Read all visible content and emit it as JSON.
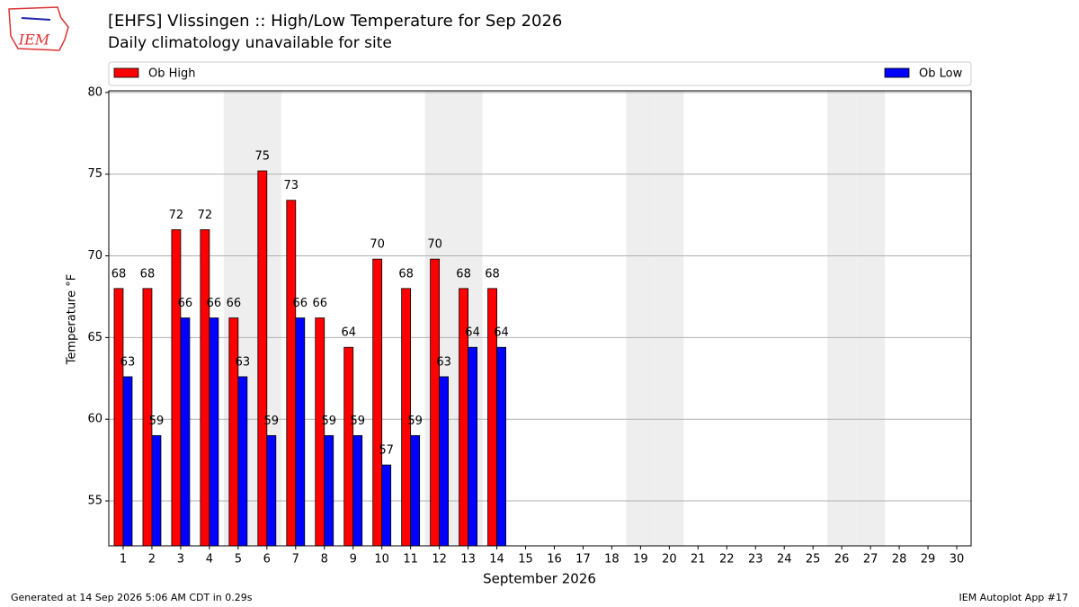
{
  "logo_text": "IEM",
  "footer_left": "Generated at 14 Sep 2026 5:06 AM CDT in 0.29s",
  "footer_right": "IEM Autoplot App #17",
  "chart_data": {
    "type": "bar",
    "title": "[EHFS] Vlissingen :: High/Low Temperature for Sep 2026",
    "subtitle": "Daily climatology unavailable for site",
    "x_label": "September 2026",
    "y_label": "Temperature °F",
    "categories": [
      "1",
      "2",
      "3",
      "4",
      "5",
      "6",
      "7",
      "8",
      "9",
      "10",
      "11",
      "12",
      "13",
      "14",
      "15",
      "16",
      "17",
      "18",
      "19",
      "20",
      "21",
      "22",
      "23",
      "24",
      "25",
      "26",
      "27",
      "28",
      "29",
      "30"
    ],
    "shaded_categories": [
      4,
      5,
      11,
      12,
      18,
      19,
      25,
      26
    ],
    "series": [
      {
        "name": "Ob High",
        "color": "#ff0000",
        "values": [
          68,
          68,
          71.6,
          71.6,
          66.2,
          75.2,
          73.4,
          66.2,
          64.4,
          69.8,
          68,
          69.8,
          68,
          68,
          null,
          null,
          null,
          null,
          null,
          null,
          null,
          null,
          null,
          null,
          null,
          null,
          null,
          null,
          null,
          null
        ],
        "value_labels": [
          "68",
          "68",
          "72",
          "72",
          "66",
          "75",
          "73",
          "66",
          "64",
          "70",
          "68",
          "70",
          "68",
          "68",
          null,
          null,
          null,
          null,
          null,
          null,
          null,
          null,
          null,
          null,
          null,
          null,
          null,
          null,
          null,
          null
        ]
      },
      {
        "name": "Ob Low",
        "color": "#0000ff",
        "values": [
          62.6,
          59,
          66.2,
          66.2,
          62.6,
          59,
          66.2,
          59,
          59,
          57.2,
          59,
          62.6,
          64.4,
          64.4,
          null,
          null,
          null,
          null,
          null,
          null,
          null,
          null,
          null,
          null,
          null,
          null,
          null,
          null,
          null,
          null
        ],
        "value_labels": [
          "63",
          "59",
          "66",
          "66",
          "63",
          "59",
          "66",
          "59",
          "59",
          "57",
          "59",
          "63",
          "64",
          "64",
          null,
          null,
          null,
          null,
          null,
          null,
          null,
          null,
          null,
          null,
          null,
          null,
          null,
          null,
          null,
          null
        ]
      }
    ],
    "ylim": [
      52.25,
      80.1
    ],
    "yticks": [
      55,
      60,
      65,
      70,
      75,
      80
    ],
    "grid": true,
    "legend": "top"
  }
}
